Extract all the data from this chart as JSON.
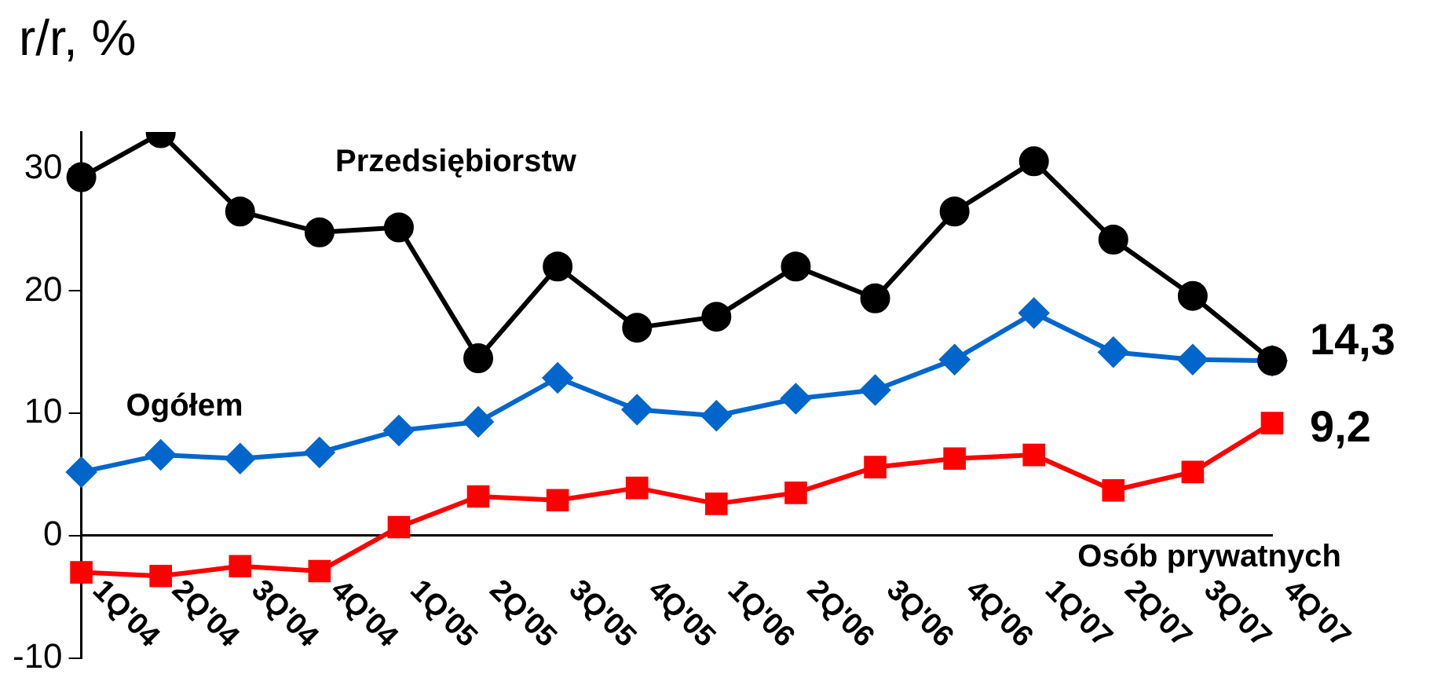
{
  "chart_data": {
    "type": "line",
    "ylabel": "r/r, %",
    "categories": [
      "1Q'04",
      "2Q'04",
      "3Q'04",
      "4Q'04",
      "1Q'05",
      "2Q'05",
      "3Q'05",
      "4Q'05",
      "1Q'06",
      "2Q'06",
      "3Q'06",
      "4Q'06",
      "1Q'07",
      "2Q'07",
      "3Q'07",
      "4Q'07"
    ],
    "series": [
      {
        "name": "Przedsiębiorstw",
        "color": "#000000",
        "marker": "circle",
        "values": [
          29.3,
          32.9,
          26.5,
          24.8,
          25.2,
          14.5,
          22.0,
          17.0,
          17.9,
          22.0,
          19.4,
          26.5,
          30.6,
          24.2,
          19.6,
          14.3
        ],
        "value_labels": [
          null,
          null,
          null,
          null,
          null,
          null,
          null,
          null,
          null,
          null,
          null,
          null,
          null,
          null,
          null,
          "14,3"
        ]
      },
      {
        "name": "Ogółem",
        "color": "#0066cc",
        "marker": "diamond",
        "values": [
          5.2,
          6.6,
          6.3,
          6.8,
          8.6,
          9.3,
          12.9,
          10.3,
          9.8,
          11.2,
          11.9,
          14.4,
          18.2,
          15.0,
          14.4,
          14.3
        ]
      },
      {
        "name": "Osób prywatnych",
        "color": "#ff0000",
        "marker": "square",
        "values": [
          -3.0,
          -3.3,
          -2.5,
          -2.9,
          0.7,
          3.2,
          2.9,
          3.9,
          2.6,
          3.5,
          5.6,
          6.3,
          6.6,
          3.7,
          5.2,
          9.2
        ],
        "value_labels": [
          null,
          null,
          null,
          null,
          null,
          null,
          null,
          null,
          null,
          null,
          null,
          null,
          null,
          null,
          null,
          "9,2"
        ]
      }
    ],
    "ylim": [
      -10,
      33
    ],
    "yticks": [
      -10,
      0,
      10,
      20,
      30
    ],
    "grid": false,
    "legend": false,
    "line_style": "solid"
  }
}
